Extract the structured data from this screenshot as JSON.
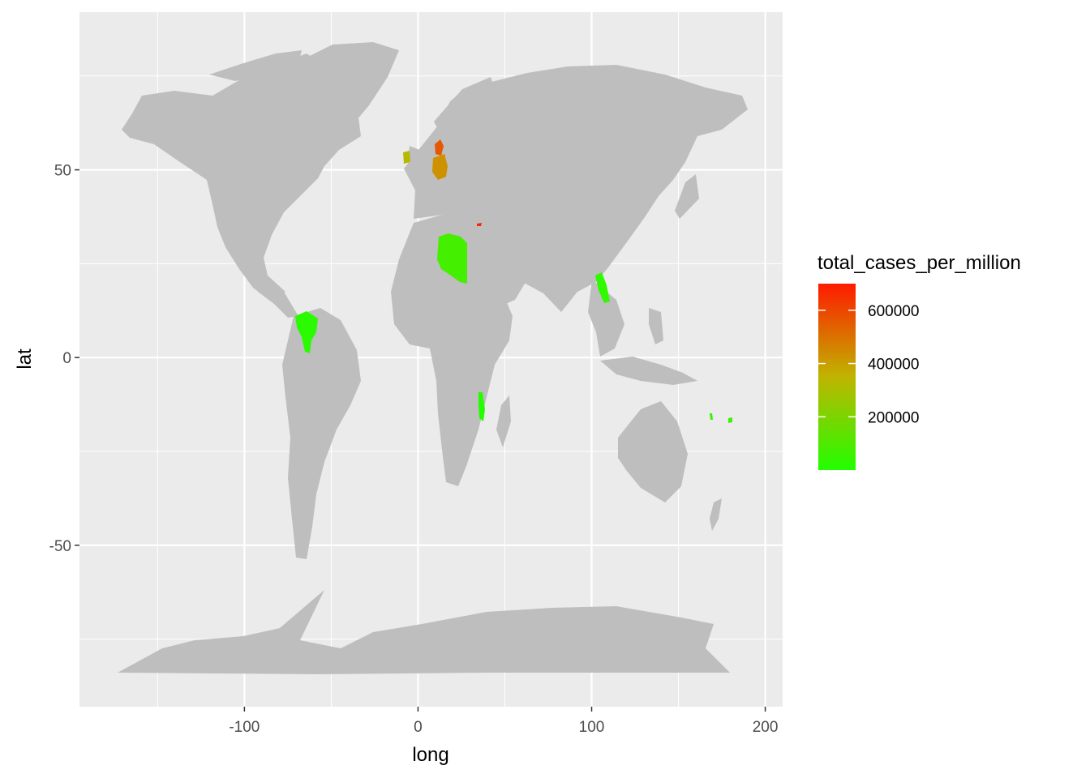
{
  "chart_data": {
    "type": "choropleth-map",
    "xlabel": "long",
    "ylabel": "lat",
    "xlim": [
      -195,
      210
    ],
    "ylim": [
      -93,
      92
    ],
    "x_ticks": [
      -100,
      0,
      100,
      200
    ],
    "y_ticks": [
      -50,
      0,
      50
    ],
    "x_tick_labels": [
      "-100",
      "0",
      "100",
      "200"
    ],
    "y_tick_labels": [
      "-50",
      "0",
      "50"
    ],
    "grid": true,
    "legend": {
      "title": "total_cases_per_million",
      "placement": "right",
      "labels": [
        "600000",
        "400000",
        "200000"
      ],
      "values": [
        600000,
        400000,
        200000
      ],
      "range": [
        0,
        700000
      ],
      "low_color": "#22ff00",
      "mid_color": "#c0b400",
      "high_color": "#ff1a00"
    },
    "colors": {
      "panel_background": "#ebebeb",
      "grid": "#ffffff",
      "land_no_data": "#bebebe"
    },
    "highlighted_regions": [
      {
        "name": "Denmark",
        "value": 560000
      },
      {
        "name": "Germany",
        "value": 430000
      },
      {
        "name": "Ireland",
        "value": 330000
      },
      {
        "name": "Cyprus",
        "value": 680000
      },
      {
        "name": "Libya",
        "value": 75000
      },
      {
        "name": "Venezuela",
        "value": 20000
      },
      {
        "name": "Laos",
        "value": 30000
      },
      {
        "name": "Malawi",
        "value": 5000
      },
      {
        "name": "Vanuatu",
        "value": 40000
      },
      {
        "name": "Fiji",
        "value": 70000
      }
    ]
  }
}
